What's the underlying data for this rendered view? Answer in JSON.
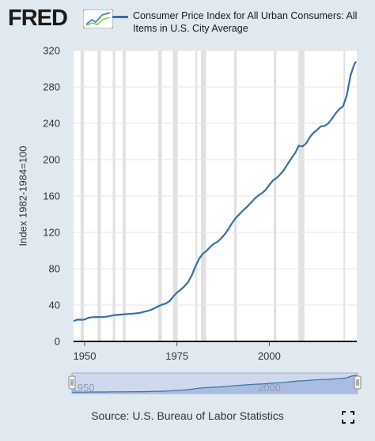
{
  "logo": {
    "text": "FRED",
    "icon": "chart-line-icon"
  },
  "chart_data": {
    "type": "line",
    "series": [
      {
        "name": "Consumer Price Index for All Urban Consumers: All Items in U.S. City Average",
        "x": [
          1947,
          1948,
          1949,
          1950,
          1951,
          1952,
          1953,
          1954,
          1955,
          1956,
          1957,
          1958,
          1959,
          1960,
          1961,
          1962,
          1963,
          1964,
          1965,
          1966,
          1967,
          1968,
          1969,
          1970,
          1971,
          1972,
          1973,
          1974,
          1975,
          1976,
          1977,
          1978,
          1979,
          1980,
          1981,
          1982,
          1983,
          1984,
          1985,
          1986,
          1987,
          1988,
          1989,
          1990,
          1991,
          1992,
          1993,
          1994,
          1995,
          1996,
          1997,
          1998,
          1999,
          2000,
          2001,
          2002,
          2003,
          2004,
          2005,
          2006,
          2007,
          2008,
          2009,
          2010,
          2011,
          2012,
          2013,
          2014,
          2015,
          2016,
          2017,
          2018,
          2019,
          2020,
          2021,
          2022,
          2023
        ],
        "y": [
          22.3,
          24.0,
          23.8,
          24.1,
          26.0,
          26.6,
          26.8,
          26.9,
          26.8,
          27.2,
          28.1,
          28.9,
          29.2,
          29.6,
          29.9,
          30.3,
          30.6,
          31.0,
          31.5,
          32.5,
          33.4,
          34.8,
          36.7,
          38.8,
          40.5,
          41.8,
          44.4,
          49.3,
          53.8,
          56.9,
          60.6,
          65.2,
          72.6,
          82.4,
          90.9,
          96.5,
          99.6,
          103.9,
          107.6,
          109.6,
          113.6,
          118.3,
          124.0,
          130.7,
          136.2,
          140.3,
          144.5,
          148.2,
          152.4,
          156.9,
          160.5,
          163.0,
          166.6,
          172.2,
          177.1,
          179.9,
          184.0,
          188.9,
          195.3,
          201.6,
          207.3,
          215.3,
          214.5,
          218.1,
          224.9,
          229.6,
          233.0,
          236.7,
          237.0,
          240.0,
          245.1,
          251.1,
          255.7,
          258.8,
          271.0,
          292.7,
          304.7
        ]
      }
    ],
    "last_point": {
      "x": 2023.5,
      "y": 308.0
    },
    "recessions": [
      [
        1948.9,
        1949.8
      ],
      [
        1953.5,
        1954.4
      ],
      [
        1957.6,
        1958.3
      ],
      [
        1960.3,
        1961.1
      ],
      [
        1969.9,
        1970.9
      ],
      [
        1973.9,
        1975.2
      ],
      [
        1980.0,
        1980.5
      ],
      [
        1981.5,
        1982.9
      ],
      [
        1990.5,
        1991.2
      ],
      [
        2001.2,
        2001.9
      ],
      [
        2007.9,
        2009.5
      ],
      [
        2020.1,
        2020.3
      ]
    ],
    "xlim": [
      1947,
      2023.7
    ],
    "ylim": [
      0,
      320
    ],
    "x_ticks": [
      1950,
      1975,
      2000
    ],
    "y_ticks": [
      0,
      40,
      80,
      120,
      160,
      200,
      240,
      280,
      320
    ],
    "ylabel": "Index 1982-1984=100",
    "navigator_ticks": [
      1950,
      2000
    ],
    "legend_placement": "top",
    "grid": true
  },
  "source": "Source: U.S. Bureau of Labor Statistics",
  "colors": {
    "line": "#3a6ea5",
    "recession": "#e1e1e1",
    "background": "#e1e9f0"
  }
}
